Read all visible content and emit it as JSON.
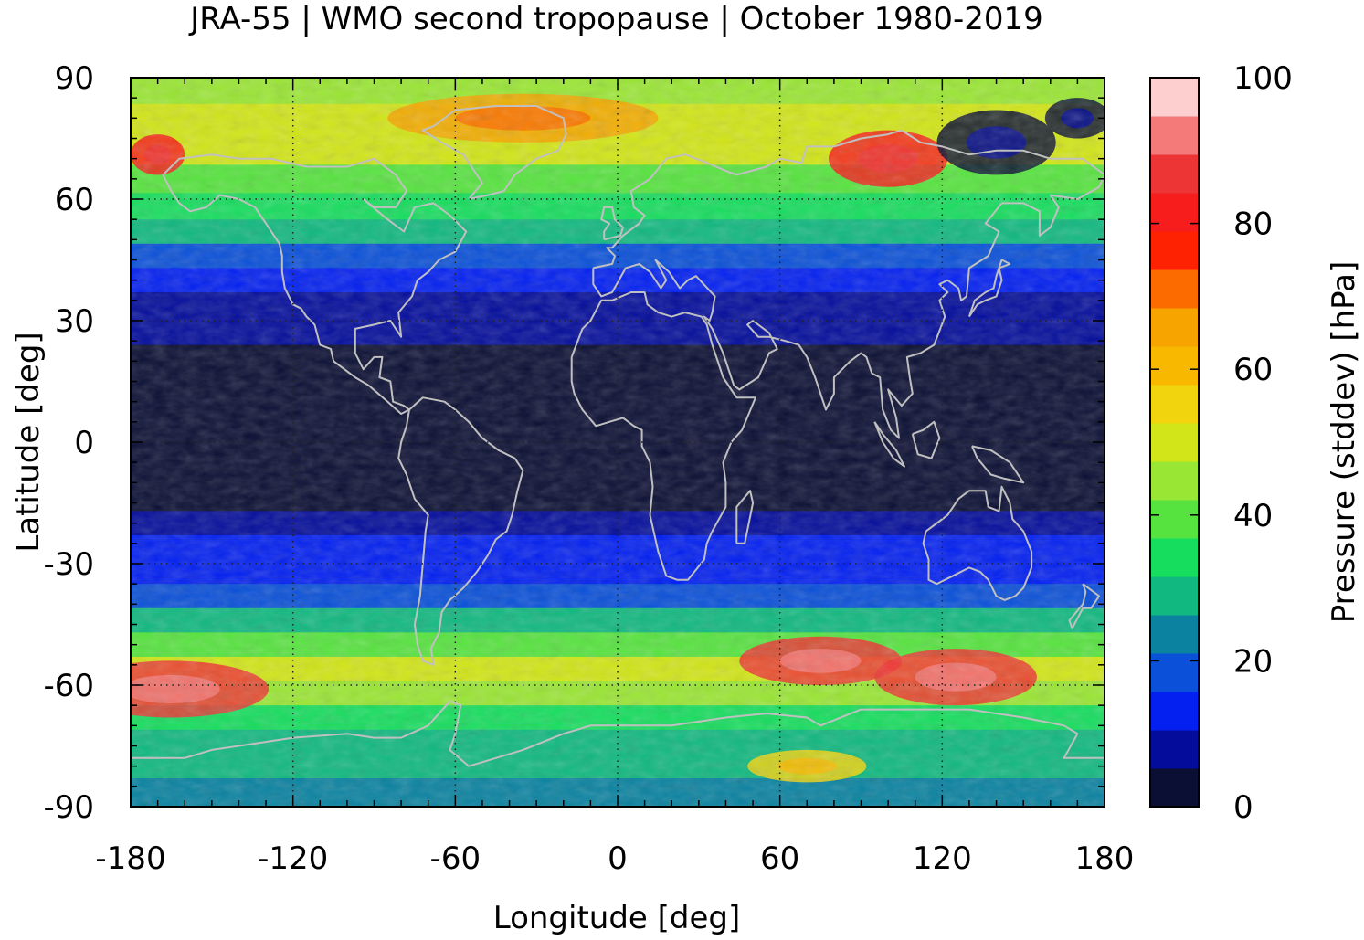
{
  "chart_data": {
    "type": "heatmap",
    "title": "JRA-55 | WMO second tropopause | October 1980-2019",
    "xlabel": "Longitude [deg]",
    "ylabel": "Latitude [deg]",
    "colorbar_label": "Pressure (stddev) [hPa]",
    "xlim": [
      -180,
      180
    ],
    "ylim": [
      -90,
      90
    ],
    "xticks": [
      -180,
      -120,
      -60,
      0,
      60,
      120,
      180
    ],
    "yticks": [
      -90,
      -60,
      -30,
      0,
      30,
      60,
      90
    ],
    "xtick_labels": [
      "-180",
      "-120",
      "-60",
      "0",
      "60",
      "120",
      "180"
    ],
    "ytick_labels": [
      "-90",
      "-60",
      "-30",
      "0",
      "30",
      "60",
      "90"
    ],
    "grid": true,
    "colorbar": {
      "range": [
        0,
        100
      ],
      "ticks": [
        0,
        20,
        40,
        60,
        80,
        100
      ],
      "tick_labels": [
        "0",
        "20",
        "40",
        "60",
        "80",
        "100"
      ],
      "colors": [
        "#0b0f33",
        "#040d9b",
        "#0320f0",
        "#0a50d8",
        "#0a82a0",
        "#11b87f",
        "#17dd5e",
        "#57e33f",
        "#9ae634",
        "#d2e518",
        "#f2d40e",
        "#f8b800",
        "#f7a300",
        "#fb6b00",
        "#fe2102",
        "#f81d1d",
        "#ed3535",
        "#f47a7a",
        "#fdcfcf"
      ]
    },
    "latitude_profile": [
      {
        "lat": 87,
        "value": 43
      },
      {
        "lat": 80,
        "value": 52
      },
      {
        "lat": 72,
        "value": 50
      },
      {
        "lat": 65,
        "value": 42
      },
      {
        "lat": 58,
        "value": 35
      },
      {
        "lat": 52,
        "value": 27
      },
      {
        "lat": 46,
        "value": 18
      },
      {
        "lat": 40,
        "value": 12
      },
      {
        "lat": 34,
        "value": 10
      },
      {
        "lat": 28,
        "value": 6
      },
      {
        "lat": 20,
        "value": 3
      },
      {
        "lat": 10,
        "value": 2
      },
      {
        "lat": 0,
        "value": 2
      },
      {
        "lat": -8,
        "value": 3
      },
      {
        "lat": -14,
        "value": 5
      },
      {
        "lat": -20,
        "value": 8
      },
      {
        "lat": -26,
        "value": 11
      },
      {
        "lat": -32,
        "value": 13
      },
      {
        "lat": -38,
        "value": 20
      },
      {
        "lat": -44,
        "value": 30
      },
      {
        "lat": -50,
        "value": 40
      },
      {
        "lat": -56,
        "value": 48
      },
      {
        "lat": -62,
        "value": 45
      },
      {
        "lat": -68,
        "value": 36
      },
      {
        "lat": -74,
        "value": 30
      },
      {
        "lat": -80,
        "value": 27
      },
      {
        "lat": -86,
        "value": 24
      }
    ],
    "hotspots": [
      {
        "lon": -165,
        "lat": -61,
        "value": 85
      },
      {
        "lon": 75,
        "lat": -54,
        "value": 85
      },
      {
        "lon": 125,
        "lat": -58,
        "value": 85
      },
      {
        "lon": -170,
        "lat": 71,
        "value": 80
      },
      {
        "lon": 100,
        "lat": 70,
        "value": 80
      },
      {
        "lon": -35,
        "lat": 80,
        "value": 65
      },
      {
        "lon": 140,
        "lat": 74,
        "value": 3
      },
      {
        "lon": 170,
        "lat": 80,
        "value": 2
      },
      {
        "lon": 70,
        "lat": -80,
        "value": 55
      }
    ]
  }
}
